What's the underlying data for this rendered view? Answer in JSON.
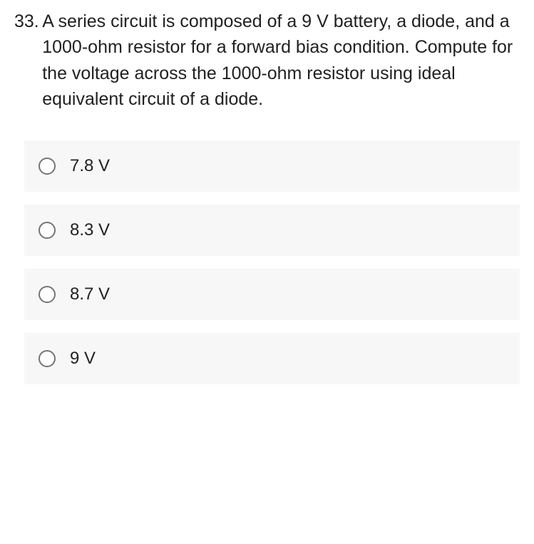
{
  "question": {
    "number": "33.",
    "text": "A series circuit is composed of a 9 V battery, a diode, and a 1000-ohm resistor for a forward bias condition. Compute for the voltage across the 1000-ohm resistor using ideal equivalent circuit of a diode.",
    "number_fontsize": 25,
    "text_fontsize": 25,
    "text_color": "#212121"
  },
  "options": [
    {
      "label": "7.8 V"
    },
    {
      "label": "8.3 V"
    },
    {
      "label": "8.7 V"
    },
    {
      "label": "9 V"
    }
  ],
  "styling": {
    "option_bg": "#f7f7f7",
    "option_fontsize": 24,
    "option_color": "#212121",
    "radio_border_color": "#757575",
    "radio_size": 24,
    "page_bg": "#ffffff"
  }
}
